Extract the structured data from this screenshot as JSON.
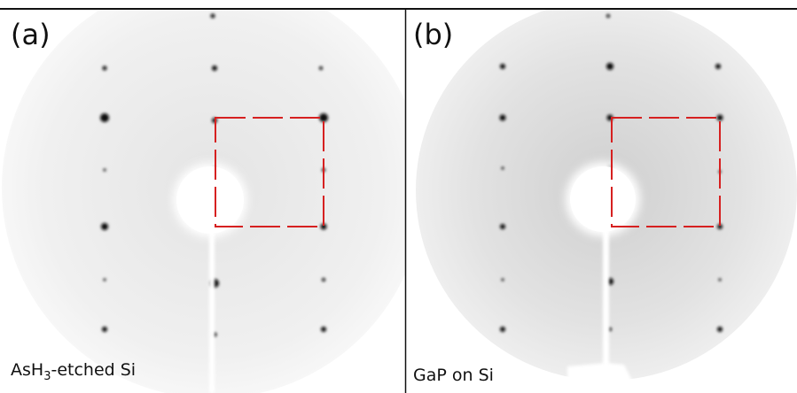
{
  "panels": [
    {
      "label": "(a)",
      "caption": {
        "main": "AsH",
        "sub": "3",
        "rest": "-etched Si"
      }
    },
    {
      "label": "(b)",
      "caption": {
        "main": "GaP on Si"
      }
    }
  ]
}
